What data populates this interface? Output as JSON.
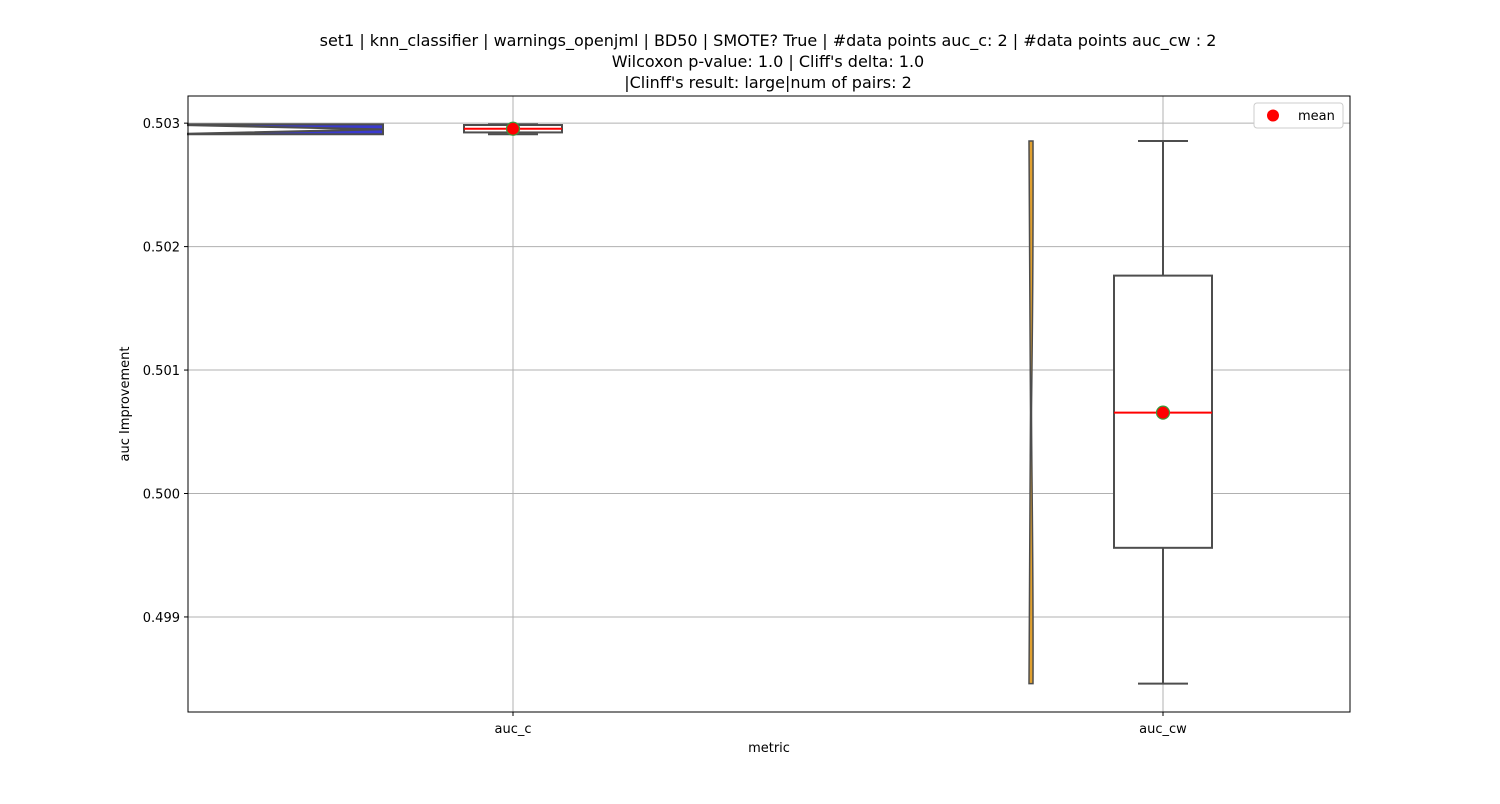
{
  "chart_data": {
    "type": "box",
    "title_lines": [
      "set1 | knn_classifier | warnings_openjml | BD50 | SMOTE? True | #data points auc_c: 2 | #data points auc_cw : 2",
      "Wilcoxon p-value: 1.0 | Cliff's delta: 1.0",
      "|Clinff's result: large|num of pairs: 2"
    ],
    "xlabel": "metric",
    "ylabel": "auc Improvement",
    "categories": [
      "auc_c",
      "auc_cw"
    ],
    "ylim": [
      0.49823,
      0.50322
    ],
    "yticks": [
      0.499,
      0.5,
      0.501,
      0.502,
      0.503
    ],
    "ytick_labels": [
      "0.499",
      "0.500",
      "0.501",
      "0.502",
      "0.503"
    ],
    "grid": true,
    "legend": {
      "position": "top-right",
      "entries": [
        {
          "label": "mean",
          "color": "#ff0000"
        }
      ]
    },
    "box_stats": [
      {
        "category": "auc_c",
        "min": 0.50291,
        "q1": 0.502925,
        "median": 0.502955,
        "q3": 0.502985,
        "max": 0.50299,
        "mean": 0.502955
      },
      {
        "category": "auc_cw",
        "min": 0.49846,
        "q1": 0.49956,
        "median": 0.500655,
        "q3": 0.501765,
        "max": 0.502855,
        "mean": 0.500655
      }
    ],
    "violins": [
      {
        "category": "auc_c",
        "color": "#3a3ad0",
        "min": 0.50291,
        "max": 0.50299
      },
      {
        "category": "auc_cw",
        "color": "#e0a030",
        "min": 0.49846,
        "max": 0.502855
      }
    ],
    "colors": {
      "median_line": "#ff0000",
      "mean_marker": "#ff0000",
      "mean_edge": "#3a9a3a",
      "box_edge": "#4d4d4d",
      "grid": "#b0b0b0"
    }
  }
}
